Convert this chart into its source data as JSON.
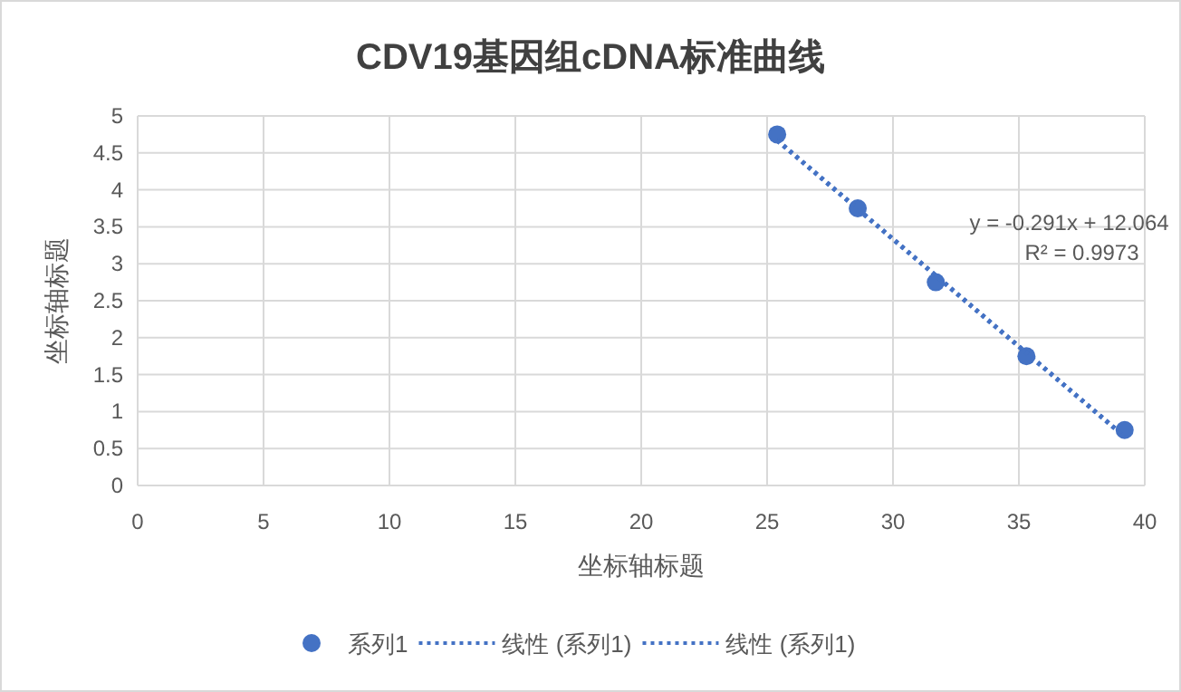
{
  "chart_data": {
    "type": "scatter",
    "title": "CDV19基因组cDNA标准曲线",
    "xlabel": "坐标轴标题",
    "ylabel": "坐标轴标题",
    "xlim": [
      0,
      40
    ],
    "xticks": [
      0,
      5,
      10,
      15,
      20,
      25,
      30,
      35,
      40
    ],
    "ylim": [
      0,
      5
    ],
    "yticks": [
      0,
      0.5,
      1,
      1.5,
      2,
      2.5,
      3,
      3.5,
      4,
      4.5,
      5
    ],
    "grid": true,
    "legend": "bottom",
    "series": [
      {
        "name": "系列1",
        "marker": "circle",
        "color": "#4472c4",
        "x": [
          25.4,
          28.6,
          31.7,
          35.3,
          39.2
        ],
        "values": [
          4.75,
          3.75,
          2.75,
          1.75,
          0.75
        ]
      },
      {
        "name": "线性 (系列1)",
        "type": "line",
        "marker": "none",
        "line_style": "dotted",
        "color": "#4472c4",
        "x": [
          25.4,
          39.2
        ],
        "values": [
          4.67,
          0.66
        ]
      },
      {
        "name": "线性 (系列1)",
        "type": "line",
        "marker": "none",
        "line_style": "dotted",
        "color": "#4472c4",
        "x": [
          25.4,
          39.2
        ],
        "values": [
          4.67,
          0.66
        ]
      }
    ],
    "annotations": [
      "y = -0.291x + 12.064",
      "R² = 0.9973"
    ]
  }
}
